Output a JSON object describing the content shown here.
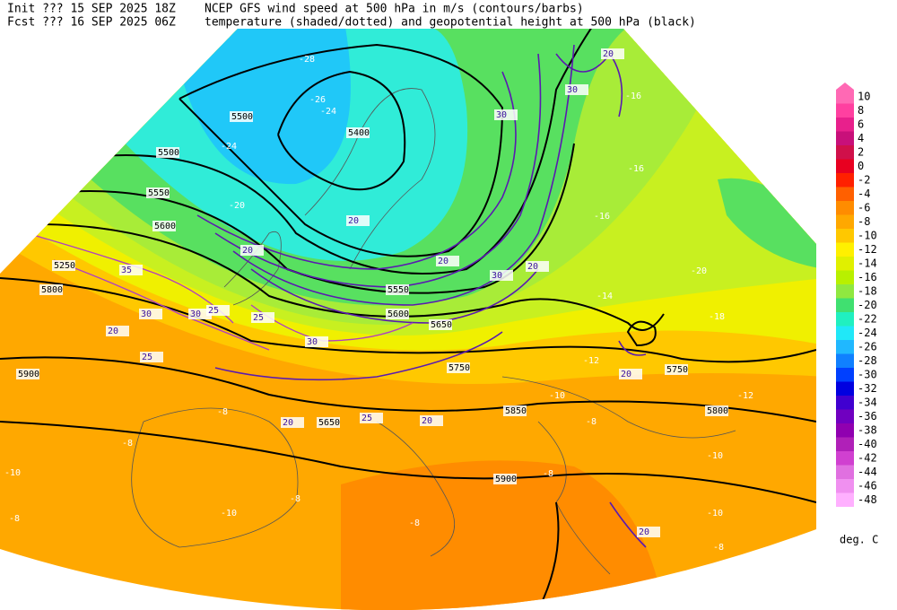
{
  "header": {
    "init": "Init  ??? 15 SEP 2025 18Z",
    "init_desc": "NCEP GFS wind speed at 500 hPa in m/s (contours/barbs)",
    "fcst": "Fcst ??? 16 SEP 2025 06Z",
    "fcst_desc": "temperature (shaded/dotted) and geopotential height at 500 hPa (black)"
  },
  "colorbar": {
    "levels": [
      10,
      8,
      6,
      4,
      2,
      0,
      -2,
      -4,
      -6,
      -8,
      -10,
      -12,
      -14,
      -16,
      -18,
      -20,
      -22,
      -24,
      -26,
      -28,
      -30,
      -32,
      -34,
      -36,
      -38,
      -40,
      -42,
      -44,
      -46,
      -48
    ],
    "colors": [
      "#ff69b4",
      "#ff40a0",
      "#e8208c",
      "#c8107a",
      "#d0104a",
      "#e80020",
      "#ff2000",
      "#ff6000",
      "#ff8c00",
      "#ffa800",
      "#ffc800",
      "#fff000",
      "#e0f000",
      "#b8f000",
      "#90e840",
      "#40e070",
      "#20f0c0",
      "#20e8f8",
      "#20b8ff",
      "#1080ff",
      "#0040ff",
      "#0000e0",
      "#4000d0",
      "#7000c0",
      "#9000b0",
      "#b020b8",
      "#d040d0",
      "#e070e0",
      "#f090f0",
      "#ffb0ff"
    ],
    "unit": "deg. C"
  },
  "labels": {
    "heights": [
      "5500",
      "5400",
      "5500",
      "5550",
      "5600",
      "5250",
      "5800",
      "5900",
      "5550",
      "5600",
      "5650",
      "5750",
      "5850",
      "5800",
      "5750",
      "5650",
      "5900"
    ],
    "temperatures": [
      "-28",
      "-26",
      "-24",
      "-24",
      "-20",
      "-16",
      "-16",
      "-16",
      "-14",
      "-12",
      "-12",
      "-10",
      "-8",
      "-8",
      "-8",
      "-10",
      "-8",
      "-10",
      "-8",
      "-8",
      "-8",
      "-10",
      "-10",
      "-8",
      "-18",
      "-20"
    ],
    "wind": [
      "20",
      "20",
      "20",
      "35",
      "30",
      "30",
      "25",
      "20",
      "25",
      "25",
      "30",
      "20",
      "30",
      "20",
      "20",
      "25",
      "20",
      "20",
      "30",
      "20",
      "30"
    ]
  }
}
